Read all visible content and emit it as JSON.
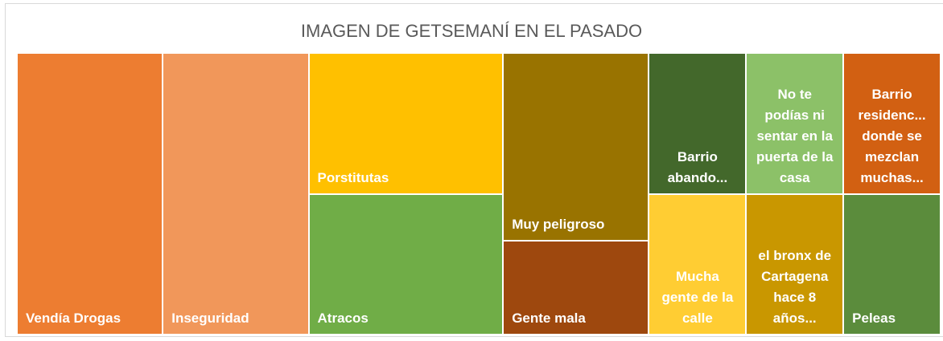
{
  "chart_data": {
    "type": "treemap",
    "title": "IMAGEN DE GETSEMANÍ EN EL PASADO",
    "categories": [
      "Vendía Drogas",
      "Inseguridad",
      "Porstitutas",
      "Atracos",
      "Muy peligroso",
      "Gente mala",
      "Barrio abando...",
      "Mucha gente de la calle",
      "No te podías ni sentar en la puerta de la casa",
      "el bronx de Cartagena hace 8 años...",
      "Barrio residenc... donde se mezclan muchas...",
      "Peleas"
    ],
    "values": [
      6,
      6,
      4,
      4,
      4,
      2,
      2,
      2,
      2,
      2,
      2,
      2
    ],
    "colors": [
      "#ED7D31",
      "#F1975A",
      "#FFC000",
      "#70AD47",
      "#997300",
      "#9E480E",
      "#43682B",
      "#FFCD33",
      "#8CC168",
      "#C99700",
      "#D26012",
      "#5B8C3C"
    ]
  }
}
